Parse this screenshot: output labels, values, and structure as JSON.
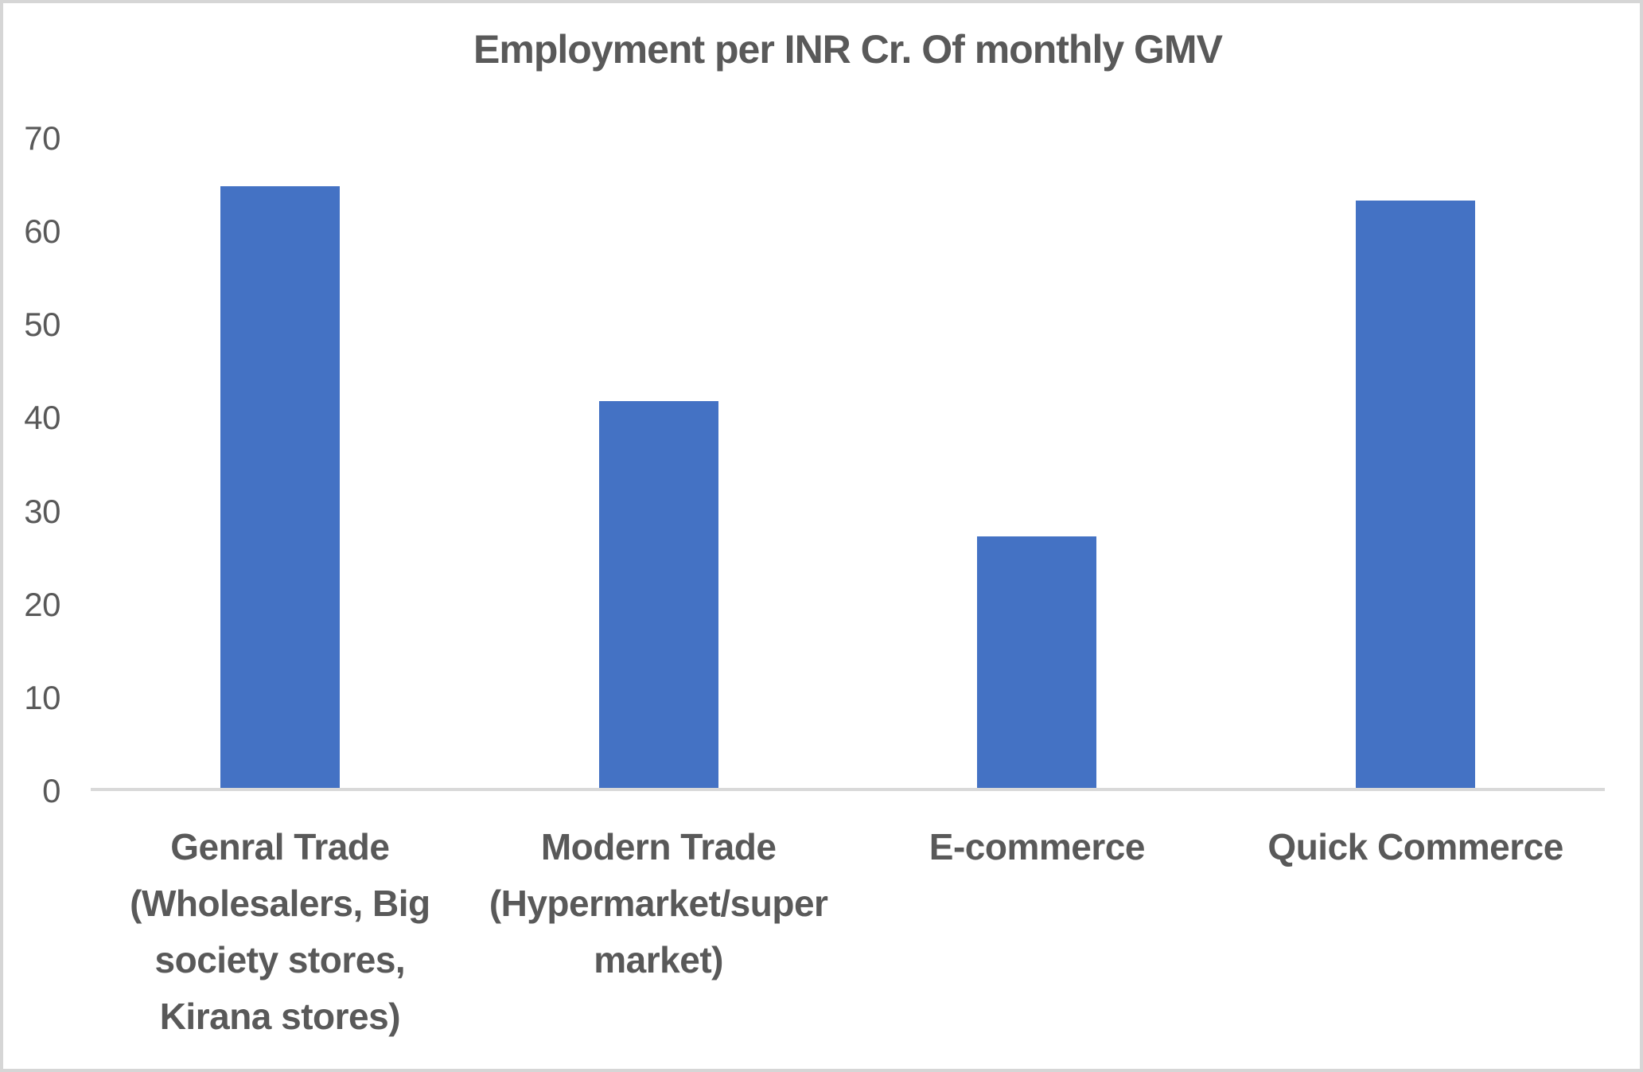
{
  "chart_data": {
    "type": "bar",
    "title": "Employment per INR Cr. Of monthly GMV",
    "categories": [
      "Genral Trade (Wholesalers, Big society stores, Kirana stores)",
      "Modern Trade (Hypermarket/super market)",
      "E-commerce",
      "Quick Commerce"
    ],
    "category_label_lines": [
      [
        "Genral Trade",
        "(Wholesalers, Big",
        "society stores,",
        "Kirana stores)"
      ],
      [
        "Modern Trade",
        "(Hypermarket/super",
        "market)"
      ],
      [
        "E-commerce"
      ],
      [
        "Quick Commerce"
      ]
    ],
    "values": [
      64.5,
      41.5,
      27,
      63
    ],
    "xlabel": "",
    "ylabel": "",
    "ylim": [
      0,
      70
    ],
    "yticks": [
      0,
      10,
      20,
      30,
      40,
      50,
      60,
      70
    ],
    "grid": false,
    "legend": "none",
    "bar_color": "#4472C4",
    "axis_line_color": "#D9D9D9",
    "text_color": "#595959",
    "frame_border_color": "#D6D6D6",
    "background_color": "#FFFFFF"
  }
}
